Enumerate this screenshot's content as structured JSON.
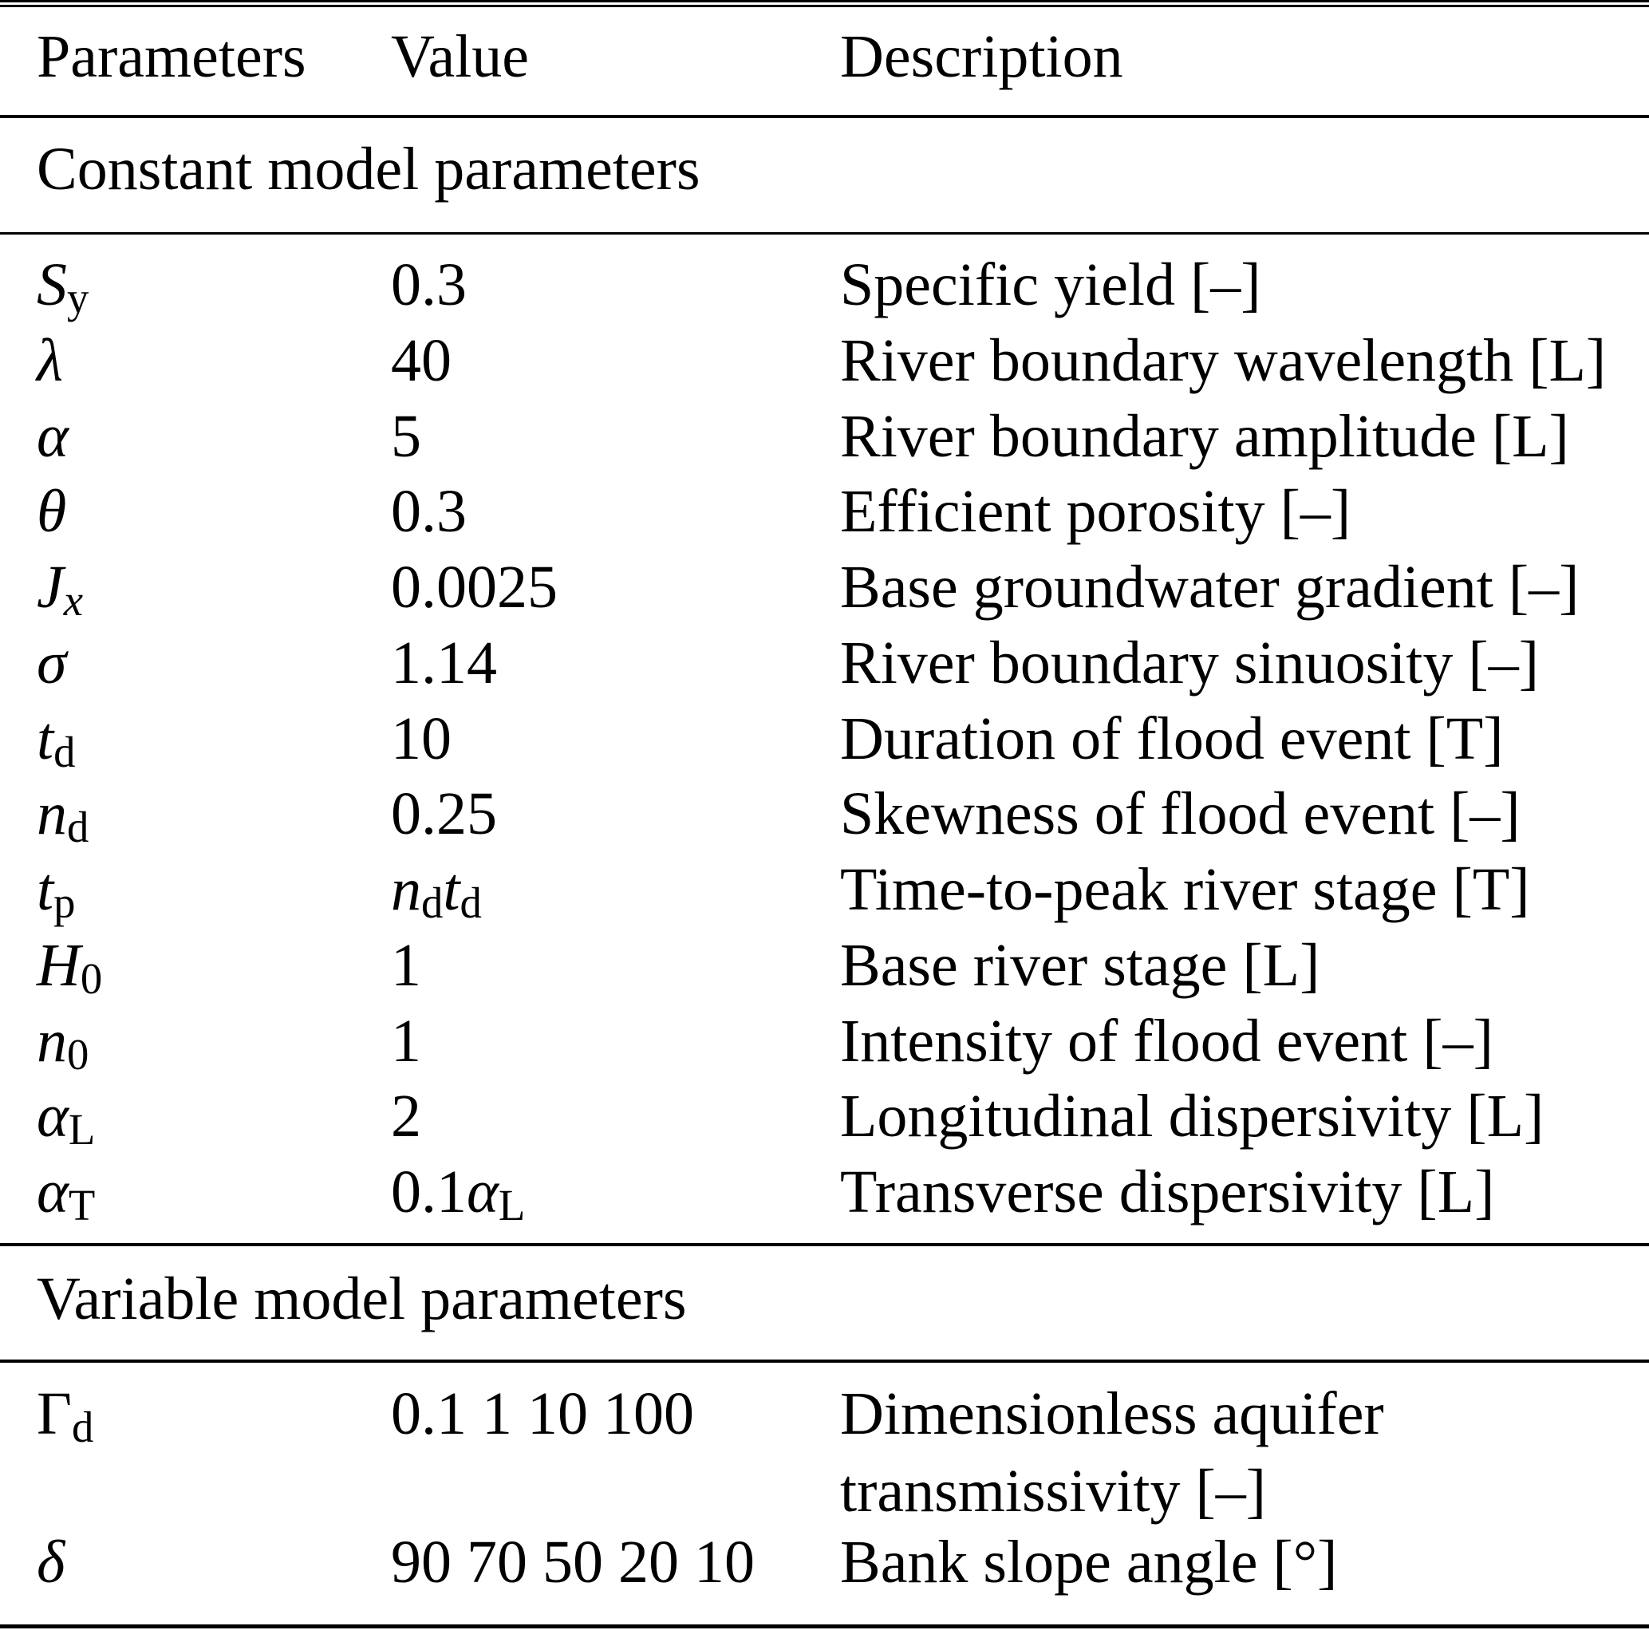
{
  "header": {
    "columns": [
      "Parameters",
      "Value",
      "Description"
    ]
  },
  "sections": [
    {
      "title": "Constant model parameters",
      "rows": [
        {
          "param": [
            [
              "S",
              "it"
            ],
            [
              "y",
              "sub"
            ]
          ],
          "value": [
            [
              "0.3",
              "up"
            ]
          ],
          "desc": "Specific yield [–]"
        },
        {
          "param": [
            [
              "λ",
              "it"
            ]
          ],
          "value": [
            [
              "40",
              "up"
            ]
          ],
          "desc": "River boundary wavelength [L]"
        },
        {
          "param": [
            [
              "α",
              "it"
            ]
          ],
          "value": [
            [
              "5",
              "up"
            ]
          ],
          "desc": "River boundary amplitude [L]"
        },
        {
          "param": [
            [
              "θ",
              "it"
            ]
          ],
          "value": [
            [
              "0.3",
              "up"
            ]
          ],
          "desc": "Efficient porosity [–]"
        },
        {
          "param": [
            [
              "J",
              "it"
            ],
            [
              "x",
              "subit"
            ]
          ],
          "value": [
            [
              "0.0025",
              "up"
            ]
          ],
          "desc": "Base groundwater gradient [–]"
        },
        {
          "param": [
            [
              "σ",
              "it"
            ]
          ],
          "value": [
            [
              "1.14",
              "up"
            ]
          ],
          "desc": "River boundary sinuosity [–]"
        },
        {
          "param": [
            [
              "t",
              "it"
            ],
            [
              "d",
              "sub"
            ]
          ],
          "value": [
            [
              "10",
              "up"
            ]
          ],
          "desc": "Duration of flood event [T]"
        },
        {
          "param": [
            [
              "n",
              "it"
            ],
            [
              "d",
              "sub"
            ]
          ],
          "value": [
            [
              "0.25",
              "up"
            ]
          ],
          "desc": "Skewness of flood event [–]"
        },
        {
          "param": [
            [
              "t",
              "it"
            ],
            [
              "p",
              "sub"
            ]
          ],
          "value": [
            [
              "n",
              "it"
            ],
            [
              "d",
              "sub"
            ],
            [
              "t",
              "it"
            ],
            [
              "d",
              "sub"
            ]
          ],
          "desc": "Time-to-peak river stage [T]"
        },
        {
          "param": [
            [
              "H",
              "it"
            ],
            [
              "0",
              "sub"
            ]
          ],
          "value": [
            [
              "1",
              "up"
            ]
          ],
          "desc": "Base river stage [L]"
        },
        {
          "param": [
            [
              "n",
              "it"
            ],
            [
              "0",
              "sub"
            ]
          ],
          "value": [
            [
              "1",
              "up"
            ]
          ],
          "desc": "Intensity of flood event [–]"
        },
        {
          "param": [
            [
              "α",
              "it"
            ],
            [
              "L",
              "sub"
            ]
          ],
          "value": [
            [
              "2",
              "up"
            ]
          ],
          "desc": "Longitudinal dispersivity [L]"
        },
        {
          "param": [
            [
              "α",
              "it"
            ],
            [
              "T",
              "sub"
            ]
          ],
          "value": [
            [
              "0.1",
              "up"
            ],
            [
              "α",
              "it"
            ],
            [
              "L",
              "sub"
            ]
          ],
          "desc": "Transverse dispersivity [L]"
        }
      ]
    },
    {
      "title": "Variable model parameters",
      "rows": [
        {
          "param": [
            [
              "Γ",
              "up"
            ],
            [
              "d",
              "sub"
            ]
          ],
          "value": [
            [
              "0.1 1 10 100",
              "up"
            ]
          ],
          "desc": "Dimensionless aquifer transmissivity [–]"
        },
        {
          "param": [
            [
              "δ",
              "it"
            ]
          ],
          "value": [
            [
              "90 70 50 20 10",
              "up"
            ]
          ],
          "desc": "Bank slope angle [°]"
        }
      ]
    }
  ],
  "colors": {
    "text": "#000000",
    "background": "#ffffff",
    "rule": "#000000"
  }
}
